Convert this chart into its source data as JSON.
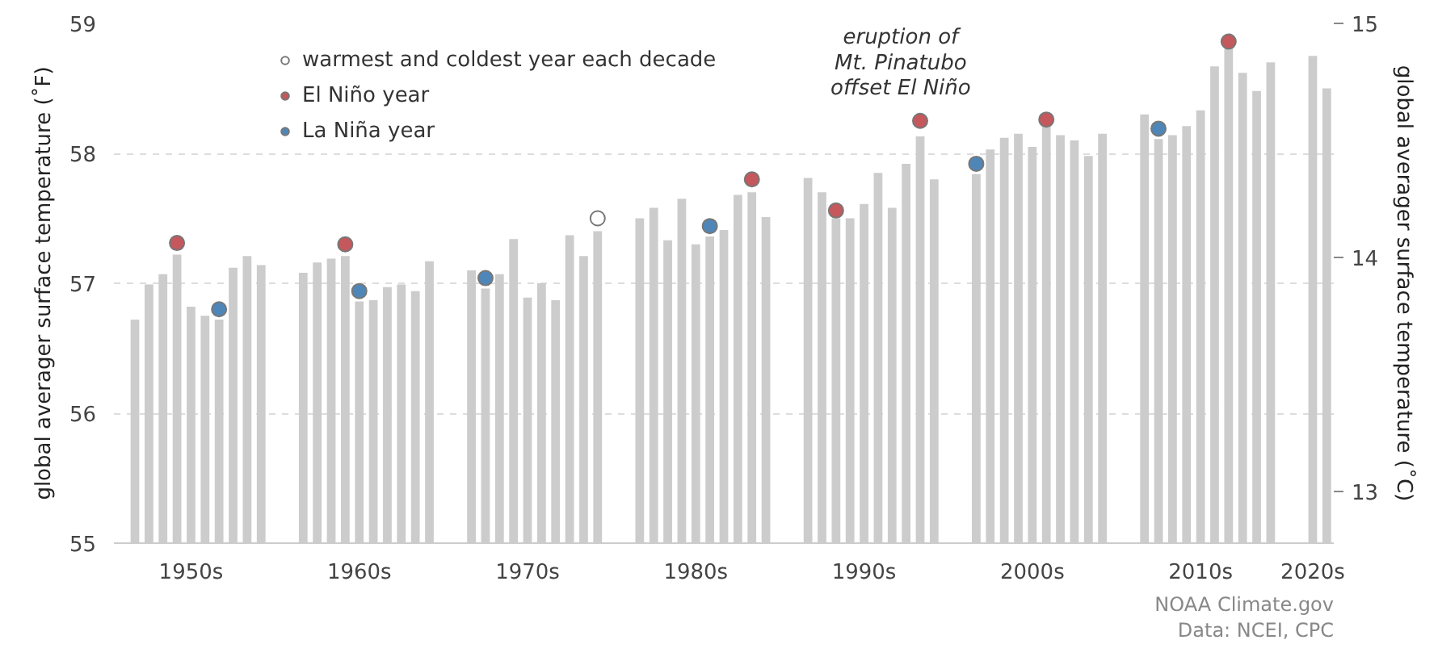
{
  "chart_data": {
    "type": "bar",
    "categories": [
      null,
      null,
      null,
      null,
      "1950s",
      null,
      null,
      null,
      null,
      null,
      null,
      null,
      null,
      null,
      null,
      null,
      "1960s",
      null,
      null,
      null,
      null,
      null,
      null,
      null,
      null,
      null,
      null,
      null,
      "1970s",
      null,
      null,
      null,
      null,
      null,
      null,
      null,
      null,
      null,
      null,
      null,
      "1980s",
      null,
      null,
      null,
      null,
      null,
      null,
      null,
      null,
      null,
      null,
      null,
      "1990s",
      null,
      null,
      null,
      null,
      null,
      null,
      null,
      null,
      null,
      null,
      null,
      "2000s",
      null,
      null,
      null,
      null,
      null,
      null,
      null,
      null,
      null,
      null,
      null,
      "2010s",
      null,
      null,
      null,
      null,
      null,
      null,
      null,
      "2020s",
      null
    ],
    "series": [
      {
        "color": "#cccccc",
        "values": [
          56.72,
          56.99,
          57.07,
          57.22,
          56.82,
          56.75,
          56.72,
          57.12,
          57.21,
          57.14,
          null,
          null,
          57.08,
          57.16,
          57.19,
          57.21,
          56.86,
          56.87,
          56.97,
          56.99,
          56.94,
          57.17,
          null,
          null,
          57.1,
          56.96,
          57.07,
          57.34,
          56.89,
          57.0,
          56.87,
          57.37,
          57.21,
          57.4,
          null,
          null,
          57.5,
          57.58,
          57.33,
          57.65,
          57.3,
          57.36,
          57.41,
          57.68,
          57.7,
          57.51,
          null,
          null,
          57.81,
          57.7,
          57.5,
          57.5,
          57.61,
          57.85,
          57.58,
          57.92,
          58.13,
          57.8,
          null,
          null,
          57.84,
          58.03,
          58.12,
          58.15,
          58.05,
          58.21,
          58.14,
          58.1,
          57.98,
          58.15,
          null,
          null,
          58.3,
          58.11,
          58.14,
          58.21,
          58.33,
          58.67,
          58.82,
          58.62,
          58.48,
          58.7,
          null,
          null,
          58.75,
          58.5
        ]
      },
      {
        "type": "scatter",
        "name": "warmest and coldest year each decade",
        "color": "#ffffff",
        "values": [
          null,
          null,
          null,
          null,
          null,
          null,
          null,
          null,
          null,
          null,
          null,
          null,
          null,
          null,
          null,
          null,
          null,
          null,
          null,
          null,
          null,
          null,
          null,
          null,
          null,
          null,
          null,
          null,
          null,
          null,
          null,
          null,
          null,
          57.5,
          null,
          null,
          null,
          null,
          null,
          null,
          null,
          null,
          null,
          null,
          null,
          null,
          null,
          null,
          null,
          null,
          null,
          null,
          null,
          null,
          null,
          null,
          null,
          null,
          null,
          null,
          null,
          null,
          null,
          null,
          null,
          null,
          null,
          null,
          null,
          null,
          null,
          null,
          null,
          null,
          null,
          null,
          null,
          null,
          null,
          null,
          null,
          null,
          null,
          null,
          null,
          null
        ]
      },
      {
        "type": "scatter",
        "name": "El Niño year",
        "color": "#c4585c",
        "values": [
          null,
          null,
          null,
          57.31,
          null,
          null,
          null,
          null,
          null,
          null,
          null,
          null,
          null,
          null,
          null,
          57.3,
          null,
          null,
          null,
          null,
          null,
          null,
          null,
          null,
          null,
          null,
          null,
          null,
          null,
          null,
          null,
          null,
          null,
          null,
          null,
          null,
          null,
          null,
          null,
          null,
          null,
          null,
          null,
          null,
          57.8,
          null,
          null,
          null,
          null,
          null,
          57.56,
          null,
          null,
          null,
          null,
          null,
          58.25,
          null,
          null,
          null,
          null,
          null,
          null,
          null,
          null,
          58.26,
          null,
          null,
          null,
          null,
          null,
          null,
          null,
          null,
          null,
          null,
          null,
          null,
          58.86,
          null,
          null,
          null,
          null,
          null,
          null,
          null
        ]
      },
      {
        "type": "scatter",
        "name": "La Niña year",
        "color": "#4f86b8",
        "values": [
          null,
          null,
          null,
          null,
          null,
          null,
          56.8,
          null,
          null,
          null,
          null,
          null,
          null,
          null,
          null,
          null,
          56.94,
          null,
          null,
          null,
          null,
          null,
          null,
          null,
          null,
          57.04,
          null,
          null,
          null,
          null,
          null,
          null,
          null,
          null,
          null,
          null,
          null,
          null,
          null,
          null,
          null,
          57.44,
          null,
          null,
          null,
          null,
          null,
          null,
          null,
          null,
          null,
          null,
          null,
          null,
          null,
          null,
          null,
          null,
          null,
          null,
          57.92,
          null,
          null,
          null,
          null,
          null,
          null,
          null,
          null,
          null,
          null,
          null,
          null,
          58.19,
          null,
          null,
          null,
          null,
          null,
          null,
          null,
          null,
          null,
          null,
          null,
          null
        ]
      }
    ],
    "marker": "circle",
    "ylabel": "global averager surface temperature (˚F)",
    "y2label": "global averager surface temperature (˚C)",
    "ylim": [
      55,
      59
    ],
    "yticks": [
      55,
      56,
      57,
      58,
      59
    ],
    "y2lim": [
      12.78,
      15
    ],
    "y2ticks": [
      13,
      14,
      15
    ],
    "grid": "y",
    "legend": "top left",
    "annotations": [
      "eruption of\nMt. Pinatubo\noffset El Niño",
      "NOAA Climate.gov",
      "Data: NCEI, CPC"
    ]
  }
}
